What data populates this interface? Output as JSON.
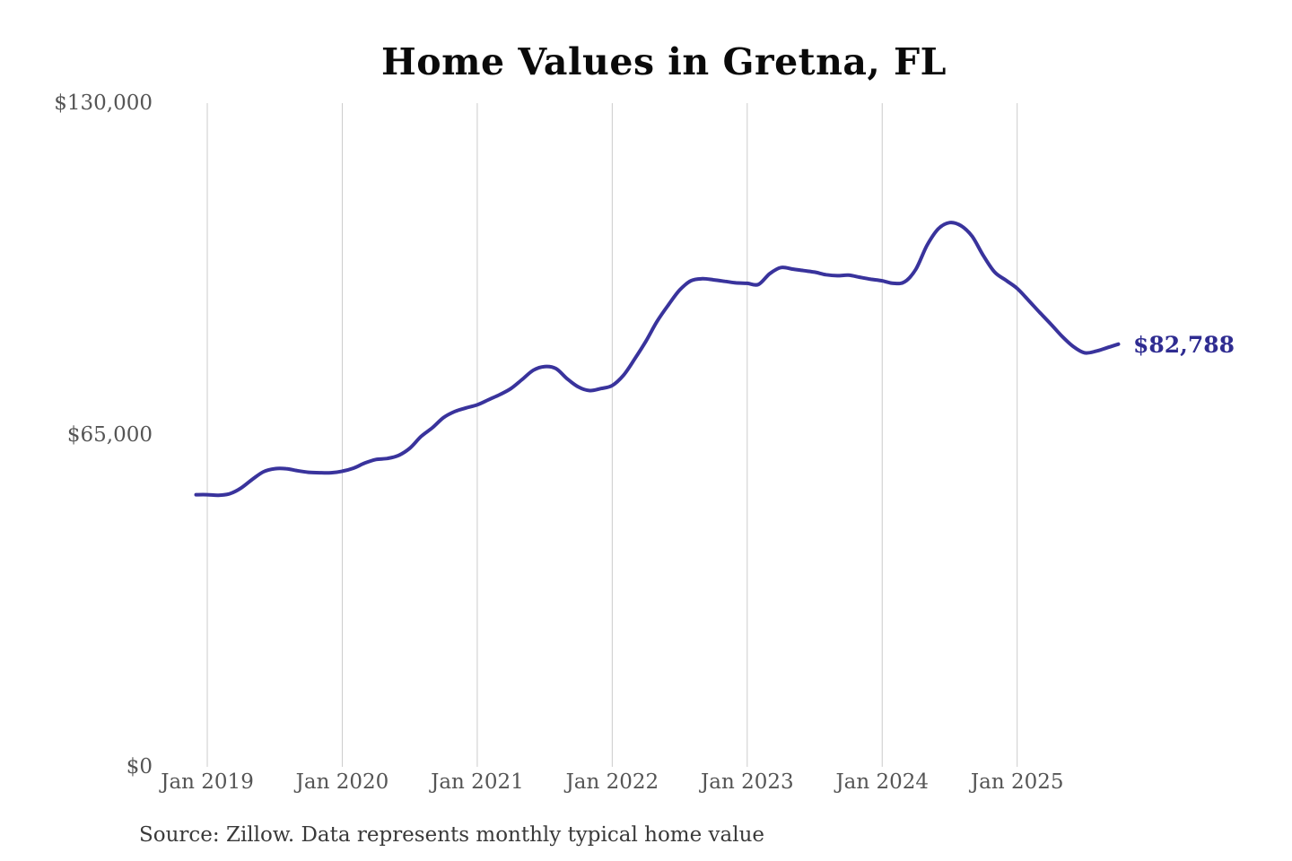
{
  "page": {
    "background": "#ffffff"
  },
  "chart_data": {
    "type": "line",
    "title": "Home Values in Gretna, FL",
    "source_note": "Source: Zillow. Data represents monthly typical home value",
    "end_label": "$82,788",
    "latest_value": 82788,
    "xlabel": "",
    "ylabel": "",
    "ylim": [
      0,
      130000
    ],
    "grid": "vertical-yearly-only",
    "legend": "none",
    "y_ticks": [
      {
        "label": "$0",
        "value": 0
      },
      {
        "label": "$65,000",
        "value": 65000
      },
      {
        "label": "$130,000",
        "value": 130000
      }
    ],
    "x_ticks": [
      "Jan 2019",
      "Jan 2020",
      "Jan 2021",
      "Jan 2022",
      "Jan 2023",
      "Jan 2024",
      "Jan 2025"
    ],
    "colors": {
      "line": "#39339c",
      "end_label": "#2f2c91",
      "grid": "#cccccc",
      "tick": "#555555",
      "title": "#0a0a0a",
      "source": "#3a3a3a"
    },
    "series": [
      {
        "name": "Monthly typical home value",
        "color": "#39339c",
        "months": [
          "Dec 2018",
          "Jan 2019",
          "Feb 2019",
          "Mar 2019",
          "Apr 2019",
          "May 2019",
          "Jun 2019",
          "Jul 2019",
          "Aug 2019",
          "Sep 2019",
          "Oct 2019",
          "Nov 2019",
          "Dec 2019",
          "Jan 2020",
          "Feb 2020",
          "Mar 2020",
          "Apr 2020",
          "May 2020",
          "Jun 2020",
          "Jul 2020",
          "Aug 2020",
          "Sep 2020",
          "Oct 2020",
          "Nov 2020",
          "Dec 2020",
          "Jan 2021",
          "Feb 2021",
          "Mar 2021",
          "Apr 2021",
          "May 2021",
          "Jun 2021",
          "Jul 2021",
          "Aug 2021",
          "Sep 2021",
          "Oct 2021",
          "Nov 2021",
          "Dec 2021",
          "Jan 2022",
          "Feb 2022",
          "Mar 2022",
          "Apr 2022",
          "May 2022",
          "Jun 2022",
          "Jul 2022",
          "Aug 2022",
          "Sep 2022",
          "Oct 2022",
          "Nov 2022",
          "Dec 2022",
          "Jan 2023",
          "Feb 2023",
          "Mar 2023",
          "Apr 2023",
          "May 2023",
          "Jun 2023",
          "Jul 2023",
          "Aug 2023",
          "Sep 2023",
          "Oct 2023",
          "Nov 2023",
          "Dec 2023",
          "Jan 2024",
          "Feb 2024",
          "Mar 2024",
          "Apr 2024",
          "May 2024",
          "Jun 2024",
          "Jul 2024",
          "Aug 2024",
          "Sep 2024",
          "Oct 2024",
          "Nov 2024",
          "Dec 2024",
          "Jan 2025",
          "Feb 2025",
          "Mar 2025",
          "Apr 2025",
          "May 2025",
          "Jun 2025",
          "Jul 2025",
          "Aug 2025",
          "Sep 2025",
          "Oct 2025"
        ],
        "values": [
          53300,
          53300,
          53200,
          53500,
          54600,
          56300,
          57800,
          58400,
          58400,
          58000,
          57700,
          57600,
          57600,
          57900,
          58500,
          59500,
          60200,
          60400,
          61000,
          62400,
          64700,
          66400,
          68400,
          69600,
          70300,
          70900,
          71900,
          72900,
          74100,
          75900,
          77700,
          78400,
          78000,
          76000,
          74400,
          73700,
          74100,
          74700,
          76700,
          79900,
          83400,
          87300,
          90500,
          93400,
          95200,
          95600,
          95400,
          95100,
          94800,
          94700,
          94500,
          96600,
          97800,
          97500,
          97200,
          96900,
          96400,
          96200,
          96300,
          95900,
          95500,
          95200,
          94700,
          95000,
          97500,
          102200,
          105400,
          106600,
          106000,
          103900,
          100100,
          96900,
          95300,
          93700,
          91400,
          89000,
          86700,
          84300,
          82300,
          81100,
          81400,
          82100,
          82788
        ]
      }
    ]
  }
}
